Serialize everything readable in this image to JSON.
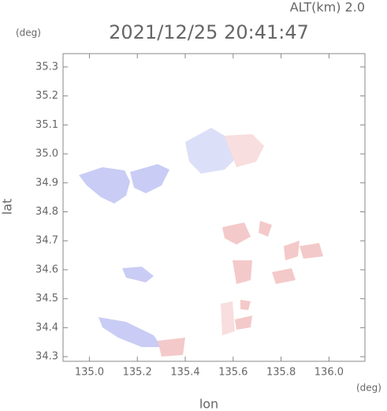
{
  "chart_data": {
    "type": "map",
    "title": "2021/12/25 20:41:47",
    "subtitle": "ALT(km) 2.0",
    "x_label": "lon",
    "y_label": "lat",
    "x_unit": "(deg)",
    "y_unit": "(deg)",
    "xlim": [
      134.89,
      136.15
    ],
    "ylim": [
      34.284,
      35.346
    ],
    "xticks": [
      {
        "value": 135.0,
        "label": "135.0"
      },
      135.2,
      135.4,
      135.6,
      135.8,
      {
        "value": 136.0,
        "label": "136.0"
      }
    ],
    "yticks": [
      34.3,
      34.4,
      34.5,
      34.6,
      34.7,
      34.8,
      34.9,
      {
        "value": 35.0,
        "label": "35.0"
      },
      35.1,
      35.2,
      35.3
    ]
  }
}
